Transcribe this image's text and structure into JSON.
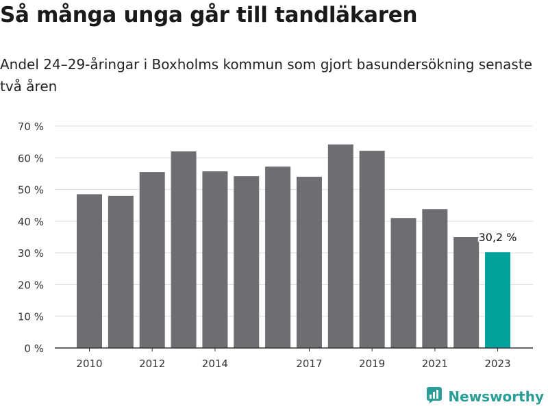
{
  "title": "Så många unga går till tandläkaren",
  "subtitle": "Andel 24–29-åringar i Boxholms kommun som gjort basundersökning senaste två åren",
  "brand": {
    "name": "Newsworthy",
    "icon": "newsworthy-logo-icon"
  },
  "colors": {
    "bar": "#6d6d72",
    "highlight": "#00a39b",
    "grid": "#dddddd",
    "axis": "#333333",
    "text": "#333333"
  },
  "chart_data": {
    "type": "bar",
    "categories": [
      "2010",
      "2011",
      "2012",
      "2013",
      "2014",
      "2015",
      "2016",
      "2017",
      "2018",
      "2019",
      "2020",
      "2021",
      "2022",
      "2023"
    ],
    "values": [
      48.5,
      48,
      55.5,
      62,
      55.7,
      54.2,
      57.2,
      54,
      64.2,
      62.2,
      41,
      43.8,
      35,
      30.2
    ],
    "x_tick_labels": [
      "2010",
      "2012",
      "2014",
      "2017",
      "2019",
      "2021",
      "2023"
    ],
    "y_ticks": [
      "0 %",
      "10 %",
      "20 %",
      "30 %",
      "40 %",
      "50 %",
      "60 %",
      "70 %"
    ],
    "ylim": [
      0,
      70
    ],
    "highlight_category": "2023",
    "highlight_label": "30,2 %",
    "grid": true,
    "xlabel": "",
    "ylabel": ""
  }
}
